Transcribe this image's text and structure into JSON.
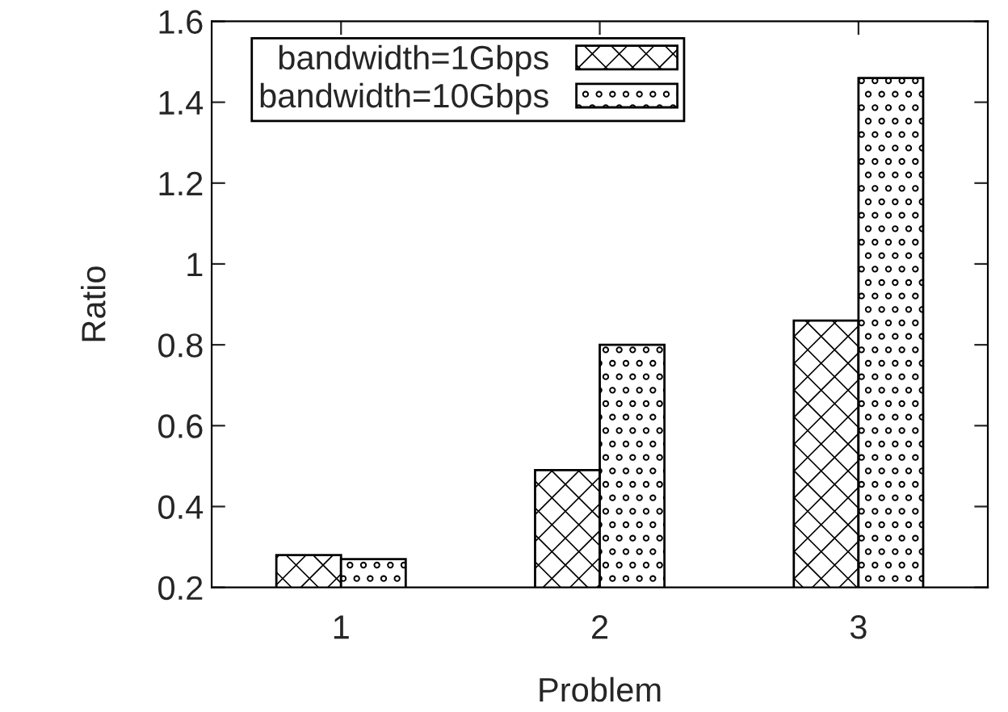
{
  "chart_data": {
    "type": "bar",
    "xlabel": "Problem",
    "ylabel": "Ratio",
    "categories": [
      "1",
      "2",
      "3"
    ],
    "series": [
      {
        "name": "bandwidth=1Gbps",
        "color": "#000000",
        "values": [
          0.28,
          0.49,
          0.86
        ]
      },
      {
        "name": "bandwidth=10Gbps",
        "color": "#000000",
        "values": [
          0.27,
          0.8,
          1.46
        ]
      }
    ],
    "ylim": [
      0.2,
      1.6
    ],
    "yticks": [
      0.2,
      0.4,
      0.6,
      0.8,
      1,
      1.2,
      1.4,
      1.6
    ],
    "grid": false,
    "legend": "top left"
  }
}
